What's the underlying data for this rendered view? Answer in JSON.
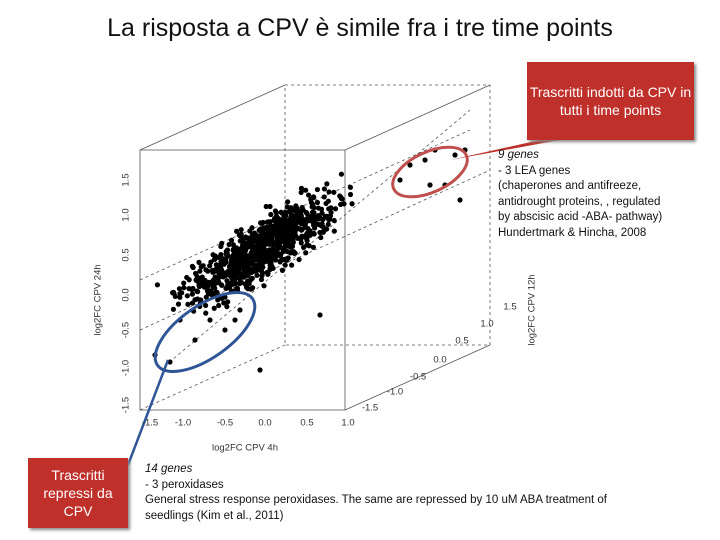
{
  "header": {
    "title": "La risposta a CPV è simile fra i tre time points"
  },
  "callout_up": {
    "label": "Trascritti indotti da CPV in tutti i time points"
  },
  "callout_down": {
    "label": "Trascritti repressi da CPV"
  },
  "note_up": {
    "count": "9 genes",
    "lines": [
      "-     3 LEA genes",
      "(chaperones and antifreeze,",
      "antidrought proteins, , regulated",
      "by abscisic acid -ABA- pathway)",
      "Hundertmark & Hincha, 2008"
    ]
  },
  "note_down": {
    "count": "14 genes",
    "lines": [
      "-     3 peroxidases",
      "General stress response peroxidases. The same are repressed by 10 uM ABA treatment of",
      "seedlings (Kim et al., 2011)"
    ]
  },
  "plot": {
    "x_label": "log2FC CPV 4h",
    "y_label": "log2FC CPV 24h",
    "z_label": "log2FC CPV 12h",
    "x_ticks": [
      "-1.5",
      "-1.0",
      "-0.5",
      "0.0",
      "0.5",
      "1.0"
    ],
    "y_ticks": [
      "-1.5",
      "-1.0",
      "-0.5",
      "0.0",
      "0.5",
      "1.0",
      "1.5"
    ],
    "z_ticks": [
      "-1.5",
      "-1.0",
      "-0.5",
      "0.0",
      "0.5",
      "1.0",
      "1.5"
    ]
  }
}
